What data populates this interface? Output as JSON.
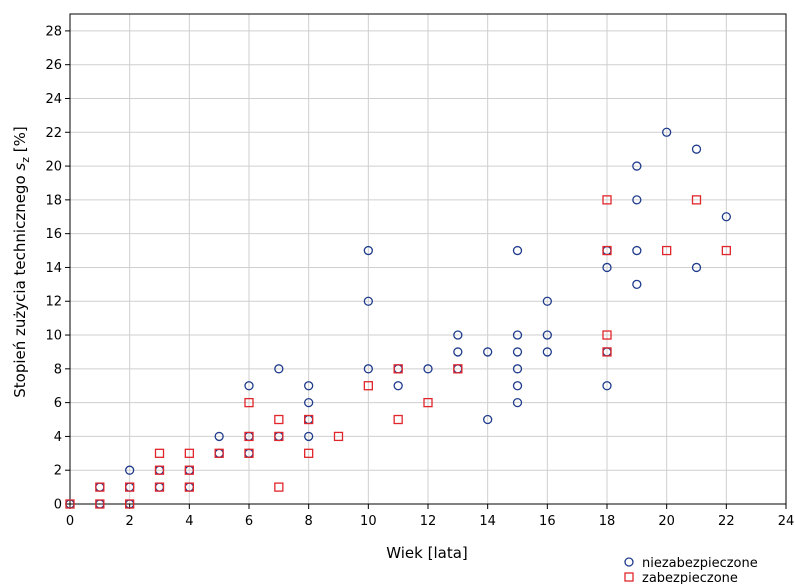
{
  "chart_data": {
    "type": "scatter",
    "xlabel": "Wiek [lata]",
    "ylabel_prefix": "Stopień zużycia technicznego ",
    "ylabel_var": "s",
    "ylabel_sub": "z",
    "ylabel_suffix": " [%]",
    "xlim": [
      0,
      24
    ],
    "ylim": [
      0,
      29
    ],
    "xticks": [
      0,
      2,
      4,
      6,
      8,
      10,
      12,
      14,
      16,
      18,
      20,
      22,
      24
    ],
    "yticks": [
      0,
      2,
      4,
      6,
      8,
      10,
      12,
      14,
      16,
      18,
      20,
      22,
      24,
      26,
      28
    ],
    "grid": true,
    "legend_position": "bottom-right",
    "series": [
      {
        "name": "niezabezpieczone",
        "marker": "circle",
        "color": "#1f3b8c",
        "points": [
          [
            0,
            0
          ],
          [
            1,
            0
          ],
          [
            1,
            1
          ],
          [
            2,
            0
          ],
          [
            2,
            1
          ],
          [
            2,
            2
          ],
          [
            3,
            1
          ],
          [
            3,
            2
          ],
          [
            4,
            1
          ],
          [
            4,
            2
          ],
          [
            5,
            3
          ],
          [
            5,
            4
          ],
          [
            6,
            3
          ],
          [
            6,
            4
          ],
          [
            6,
            7
          ],
          [
            7,
            4
          ],
          [
            7,
            8
          ],
          [
            8,
            4
          ],
          [
            8,
            5
          ],
          [
            8,
            6
          ],
          [
            8,
            7
          ],
          [
            10,
            8
          ],
          [
            10,
            12
          ],
          [
            10,
            15
          ],
          [
            11,
            7
          ],
          [
            11,
            8
          ],
          [
            12,
            8
          ],
          [
            13,
            8
          ],
          [
            13,
            9
          ],
          [
            13,
            10
          ],
          [
            14,
            5
          ],
          [
            14,
            9
          ],
          [
            15,
            6
          ],
          [
            15,
            7
          ],
          [
            15,
            8
          ],
          [
            15,
            9
          ],
          [
            15,
            10
          ],
          [
            15,
            15
          ],
          [
            16,
            9
          ],
          [
            16,
            10
          ],
          [
            16,
            12
          ],
          [
            18,
            7
          ],
          [
            18,
            9
          ],
          [
            18,
            14
          ],
          [
            18,
            15
          ],
          [
            19,
            13
          ],
          [
            19,
            15
          ],
          [
            19,
            18
          ],
          [
            19,
            20
          ],
          [
            20,
            22
          ],
          [
            21,
            14
          ],
          [
            21,
            21
          ],
          [
            22,
            17
          ]
        ]
      },
      {
        "name": "zabezpieczone",
        "marker": "square",
        "color": "#e0252b",
        "points": [
          [
            0,
            0
          ],
          [
            1,
            0
          ],
          [
            1,
            1
          ],
          [
            2,
            0
          ],
          [
            2,
            1
          ],
          [
            3,
            1
          ],
          [
            3,
            2
          ],
          [
            3,
            3
          ],
          [
            4,
            1
          ],
          [
            4,
            2
          ],
          [
            4,
            3
          ],
          [
            5,
            3
          ],
          [
            6,
            3
          ],
          [
            6,
            4
          ],
          [
            6,
            6
          ],
          [
            7,
            1
          ],
          [
            7,
            4
          ],
          [
            7,
            5
          ],
          [
            8,
            3
          ],
          [
            8,
            5
          ],
          [
            9,
            4
          ],
          [
            10,
            7
          ],
          [
            11,
            5
          ],
          [
            11,
            8
          ],
          [
            12,
            6
          ],
          [
            13,
            8
          ],
          [
            18,
            9
          ],
          [
            18,
            10
          ],
          [
            18,
            15
          ],
          [
            18,
            18
          ],
          [
            20,
            15
          ],
          [
            21,
            18
          ],
          [
            22,
            15
          ]
        ]
      }
    ]
  }
}
